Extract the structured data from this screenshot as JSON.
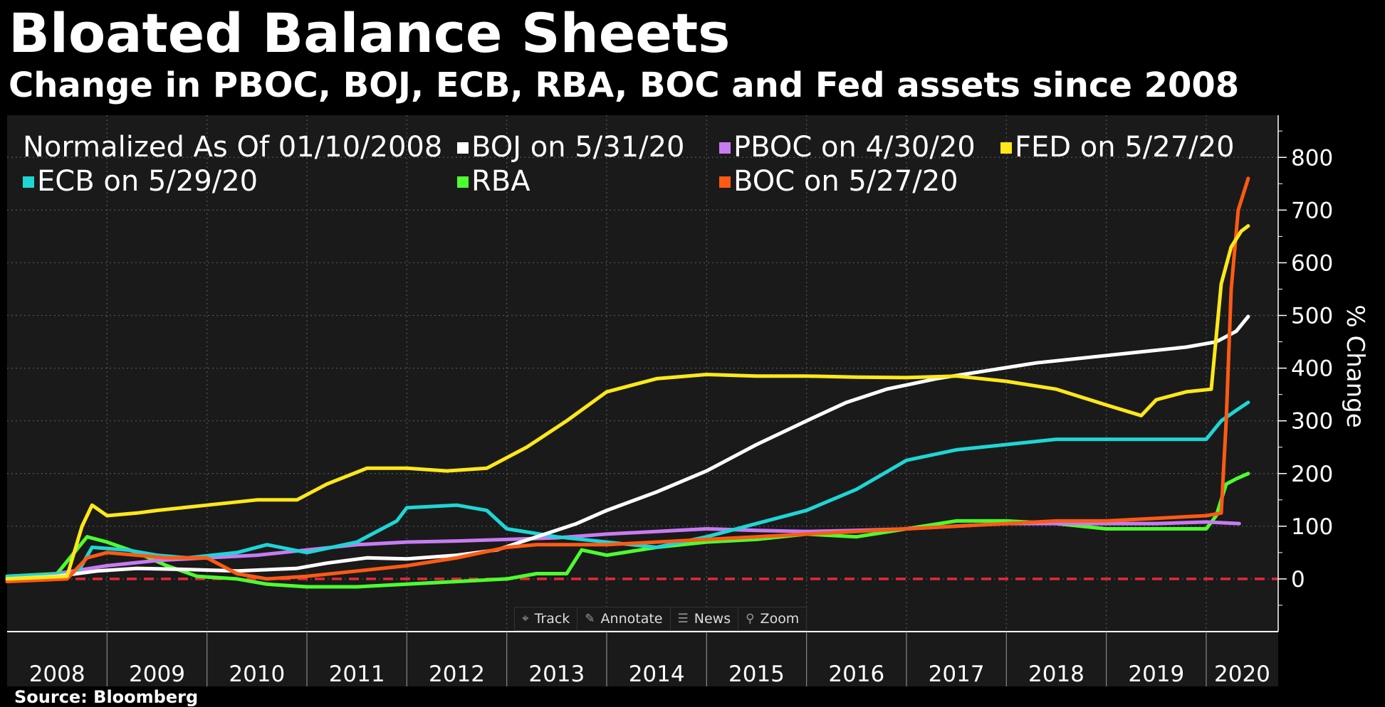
{
  "title": "Bloated Balance Sheets",
  "subtitle": "Change in PBOC, BOJ, ECB, RBA, BOC and Fed assets since 2008",
  "source": "Source: Bloomberg",
  "toolbar": {
    "track": {
      "label": "Track",
      "icon": "crosshair-icon"
    },
    "annotate": {
      "label": "Annotate",
      "icon": "pencil-icon"
    },
    "news": {
      "label": "News",
      "icon": "news-icon"
    },
    "zoom": {
      "label": "Zoom",
      "icon": "magnifier-icon"
    }
  },
  "chart_data": {
    "type": "line",
    "title": "Bloated Balance Sheets",
    "subtitle": "Change in PBOC, BOJ, ECB, RBA, BOC and Fed assets since 2008",
    "legend_header": "Normalized As Of 01/10/2008",
    "ylabel": "% Change",
    "ylim": [
      -100,
      880
    ],
    "y_ticks": [
      0,
      100,
      200,
      300,
      400,
      500,
      600,
      700,
      800
    ],
    "xlim": [
      2008.0,
      2020.72
    ],
    "x_ticks": [
      "2008",
      "2009",
      "2010",
      "2011",
      "2012",
      "2013",
      "2014",
      "2015",
      "2016",
      "2017",
      "2018",
      "2019",
      "2020"
    ],
    "background": "#1a1a1a",
    "grid": true,
    "legend_position": "top-left",
    "reference_line": {
      "y": 0,
      "color": "#e8283a",
      "style": "dashed"
    },
    "series": [
      {
        "name": "BOJ on 5/31/20",
        "color": "#ffffff",
        "x": [
          2008.0,
          2008.5,
          2008.9,
          2009.3,
          2009.8,
          2010.3,
          2010.9,
          2011.2,
          2011.6,
          2012.0,
          2012.5,
          2012.9,
          2013.3,
          2013.7,
          2014.0,
          2014.5,
          2015.0,
          2015.5,
          2016.0,
          2016.4,
          2016.8,
          2017.3,
          2017.8,
          2018.3,
          2018.8,
          2019.3,
          2019.8,
          2020.1,
          2020.3,
          2020.42
        ],
        "y": [
          0,
          5,
          15,
          20,
          18,
          15,
          20,
          30,
          40,
          38,
          45,
          55,
          80,
          105,
          130,
          165,
          205,
          255,
          300,
          335,
          360,
          380,
          395,
          410,
          420,
          430,
          440,
          450,
          470,
          498
        ]
      },
      {
        "name": "PBOC on 4/30/20",
        "color": "#c77cf2",
        "x": [
          2008.0,
          2008.5,
          2009.0,
          2009.5,
          2010.0,
          2010.5,
          2011.0,
          2011.5,
          2012.0,
          2012.5,
          2013.0,
          2013.5,
          2014.0,
          2014.5,
          2015.0,
          2015.5,
          2016.0,
          2016.5,
          2017.0,
          2017.5,
          2018.0,
          2018.5,
          2019.0,
          2019.5,
          2020.0,
          2020.33
        ],
        "y": [
          0,
          10,
          25,
          35,
          40,
          45,
          55,
          65,
          70,
          72,
          75,
          78,
          85,
          90,
          95,
          92,
          90,
          92,
          95,
          100,
          105,
          105,
          105,
          105,
          108,
          105
        ]
      },
      {
        "name": "FED on 5/27/20",
        "color": "#ffe81a",
        "x": [
          2008.0,
          2008.6,
          2008.75,
          2008.85,
          2009.0,
          2009.3,
          2009.5,
          2010.0,
          2010.5,
          2010.9,
          2011.2,
          2011.6,
          2012.0,
          2012.4,
          2012.8,
          2013.2,
          2013.6,
          2014.0,
          2014.5,
          2015.0,
          2015.5,
          2016.0,
          2016.5,
          2017.0,
          2017.5,
          2018.0,
          2018.5,
          2019.0,
          2019.35,
          2019.5,
          2019.8,
          2020.05,
          2020.15,
          2020.25,
          2020.35,
          2020.42
        ],
        "y": [
          0,
          5,
          100,
          140,
          120,
          125,
          130,
          140,
          150,
          150,
          180,
          210,
          210,
          205,
          210,
          250,
          300,
          355,
          380,
          388,
          385,
          385,
          383,
          382,
          385,
          375,
          360,
          330,
          310,
          340,
          355,
          360,
          560,
          630,
          660,
          670
        ]
      },
      {
        "name": "ECB on 5/29/20",
        "color": "#1ed6d6",
        "x": [
          2008.0,
          2008.7,
          2008.85,
          2009.2,
          2009.5,
          2009.8,
          2010.3,
          2010.6,
          2011.0,
          2011.5,
          2011.9,
          2012.0,
          2012.5,
          2012.8,
          2013.0,
          2013.5,
          2014.0,
          2014.5,
          2015.0,
          2015.5,
          2016.0,
          2016.5,
          2017.0,
          2017.5,
          2018.0,
          2018.5,
          2019.0,
          2019.5,
          2020.0,
          2020.15,
          2020.3,
          2020.42
        ],
        "y": [
          5,
          10,
          60,
          55,
          45,
          40,
          50,
          65,
          50,
          70,
          110,
          135,
          140,
          130,
          95,
          80,
          70,
          60,
          80,
          105,
          130,
          170,
          225,
          245,
          255,
          265,
          265,
          265,
          265,
          300,
          320,
          335
        ]
      },
      {
        "name": "RBA",
        "color": "#4dff2e",
        "x": [
          2008.0,
          2008.5,
          2008.8,
          2009.0,
          2009.3,
          2009.6,
          2009.9,
          2010.3,
          2010.6,
          2011.0,
          2011.5,
          2012.0,
          2012.5,
          2013.0,
          2013.3,
          2013.6,
          2013.75,
          2014.0,
          2014.5,
          2015.0,
          2015.5,
          2016.0,
          2016.5,
          2017.0,
          2017.5,
          2018.0,
          2018.5,
          2019.0,
          2019.5,
          2020.0,
          2020.1,
          2020.2,
          2020.3,
          2020.42
        ],
        "y": [
          5,
          10,
          80,
          70,
          50,
          25,
          5,
          0,
          -10,
          -15,
          -15,
          -10,
          -5,
          0,
          10,
          10,
          55,
          45,
          60,
          70,
          75,
          85,
          80,
          95,
          110,
          110,
          105,
          95,
          95,
          95,
          120,
          180,
          190,
          200
        ]
      },
      {
        "name": "BOC on 5/27/20",
        "color": "#ff5a14",
        "x": [
          2008.0,
          2008.6,
          2008.8,
          2009.0,
          2009.3,
          2009.6,
          2010.0,
          2010.3,
          2010.6,
          2011.0,
          2011.5,
          2012.0,
          2012.5,
          2013.0,
          2013.3,
          2013.5,
          2014.0,
          2014.5,
          2015.0,
          2015.5,
          2016.0,
          2016.5,
          2017.0,
          2017.5,
          2018.0,
          2018.5,
          2019.0,
          2019.5,
          2020.0,
          2020.15,
          2020.2,
          2020.25,
          2020.32,
          2020.42
        ],
        "y": [
          -5,
          0,
          40,
          50,
          45,
          40,
          40,
          10,
          0,
          5,
          15,
          25,
          40,
          60,
          65,
          65,
          65,
          70,
          75,
          80,
          85,
          90,
          95,
          100,
          105,
          110,
          110,
          115,
          120,
          125,
          300,
          550,
          700,
          760
        ]
      }
    ]
  }
}
